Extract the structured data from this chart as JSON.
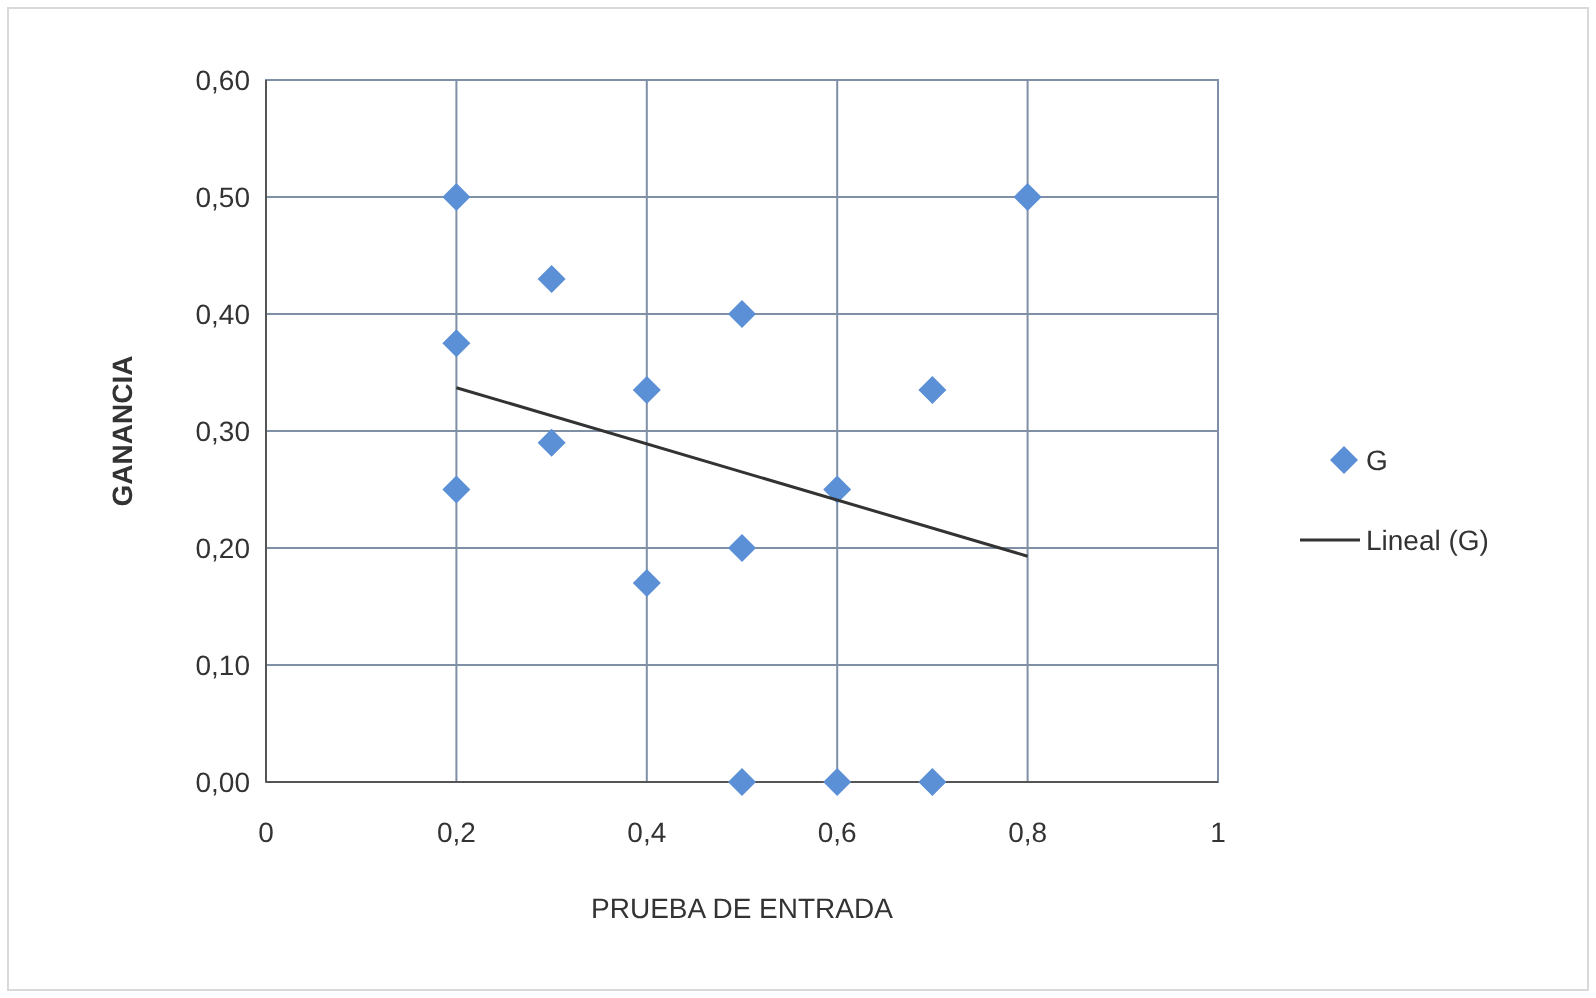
{
  "chart_data": {
    "type": "scatter",
    "xlabel": "PRUEBA  DE ENTRADA",
    "ylabel": "GANANCIA",
    "xlim": [
      0,
      1
    ],
    "xticks": [
      0,
      {
        "value": 0.2,
        "label": "0,2"
      },
      {
        "value": 0.4,
        "label": "0,4"
      },
      {
        "value": 0.6,
        "label": "0,6"
      },
      {
        "value": 0.8,
        "label": "0,8"
      },
      1
    ],
    "ylim": [
      0,
      0.6
    ],
    "yticks": [
      {
        "value": 0,
        "label": "0,00"
      },
      {
        "value": 0.1,
        "label": "0,10"
      },
      {
        "value": 0.2,
        "label": "0,20"
      },
      {
        "value": 0.3,
        "label": "0,30"
      },
      {
        "value": 0.4,
        "label": "0,40"
      },
      {
        "value": 0.5,
        "label": "0,50"
      },
      {
        "value": 0.6,
        "label": "0,60"
      }
    ],
    "grid": true,
    "legend": "right",
    "series": [
      {
        "name": "G",
        "type": "scatter",
        "marker": "diamond",
        "color": "#5b8fd6",
        "x": [
          0.2,
          0.2,
          0.2,
          0.3,
          0.3,
          0.4,
          0.4,
          0.5,
          0.5,
          0.5,
          0.6,
          0.6,
          0.7,
          0.7,
          0.8
        ],
        "values": [
          0.5,
          0.375,
          0.25,
          0.43,
          0.29,
          0.335,
          0.17,
          0.4,
          0.2,
          0,
          0.25,
          0,
          0.335,
          0,
          0.5
        ]
      },
      {
        "name": "Lineal (G)",
        "type": "line",
        "marker": "none",
        "line_style": "solid",
        "color": "#333333",
        "x": [
          0.2,
          0.8
        ],
        "values": [
          0.337,
          0.193
        ]
      }
    ]
  }
}
